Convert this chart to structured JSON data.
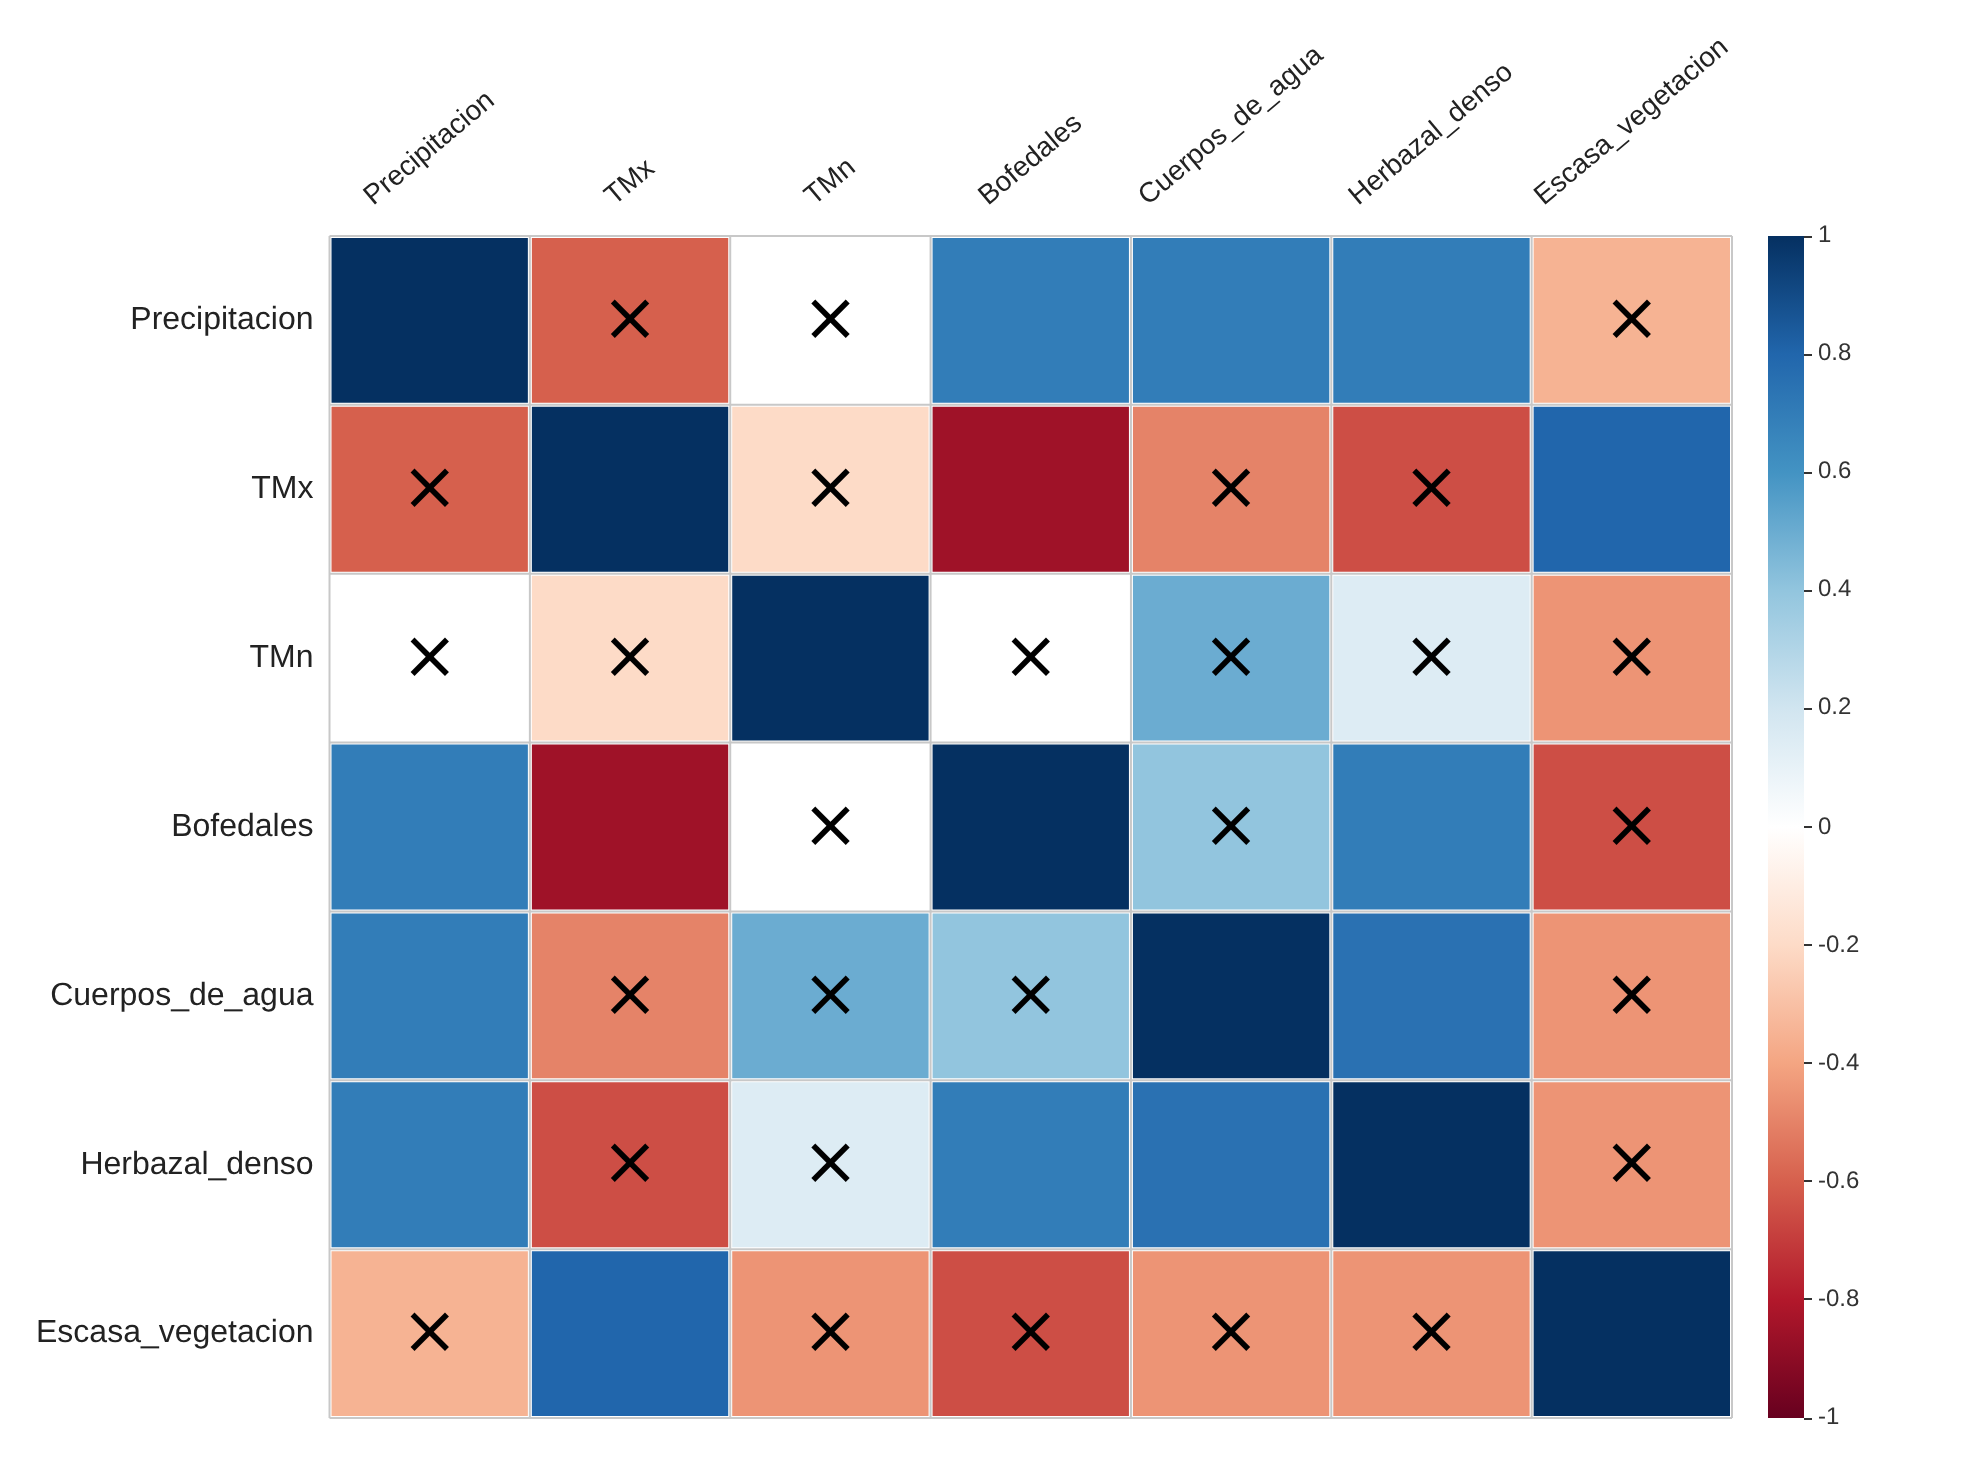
{
  "chart_data": {
    "type": "heatmap",
    "categories": [
      "Precipitacion",
      "TMx",
      "TMn",
      "Bofedales",
      "Cuerpos_de_agua",
      "Herbazal_denso",
      "Escasa_vegetacion"
    ],
    "y_categories": [
      "Precipitacion",
      "TMx",
      "TMn",
      "Bofedales",
      "Cuerpos_de_agua",
      "Herbazal_denso",
      "Escasa_vegetacion"
    ],
    "cells": [
      [
        1,
        -0.6,
        0,
        0.7,
        0.7,
        0.7,
        -0.35
      ],
      [
        -0.6,
        1,
        -0.2,
        -0.85,
        -0.5,
        -0.65,
        0.8
      ],
      [
        0,
        -0.2,
        1,
        0,
        0.5,
        0.15,
        -0.45
      ],
      [
        0.7,
        -0.85,
        0,
        1,
        0.4,
        0.7,
        -0.65
      ],
      [
        0.7,
        -0.5,
        0.5,
        0.4,
        1,
        0.75,
        -0.45
      ],
      [
        0.7,
        -0.65,
        0.15,
        0.7,
        0.75,
        1,
        -0.45
      ],
      [
        -0.35,
        0.8,
        -0.45,
        -0.65,
        -0.45,
        -0.45,
        1
      ]
    ],
    "cell_labels": [
      [
        null,
        "×",
        "×",
        null,
        null,
        null,
        "×"
      ],
      [
        "×",
        null,
        "×",
        null,
        "×",
        "×",
        null
      ],
      [
        "×",
        "×",
        null,
        "×",
        "×",
        "×",
        "×"
      ],
      [
        null,
        null,
        "×",
        null,
        "×",
        null,
        "×"
      ],
      [
        null,
        "×",
        "×",
        "×",
        null,
        null,
        "×"
      ],
      [
        null,
        "×",
        "×",
        null,
        null,
        null,
        "×"
      ],
      [
        "×",
        null,
        "×",
        "×",
        "×",
        "×",
        null
      ]
    ],
    "clim": [
      -1,
      1
    ],
    "cticks": [
      -1,
      -0.8,
      -0.6,
      -0.4,
      -0.2,
      0,
      0.2,
      0.4,
      0.6,
      0.8,
      1
    ],
    "grid": true
  }
}
